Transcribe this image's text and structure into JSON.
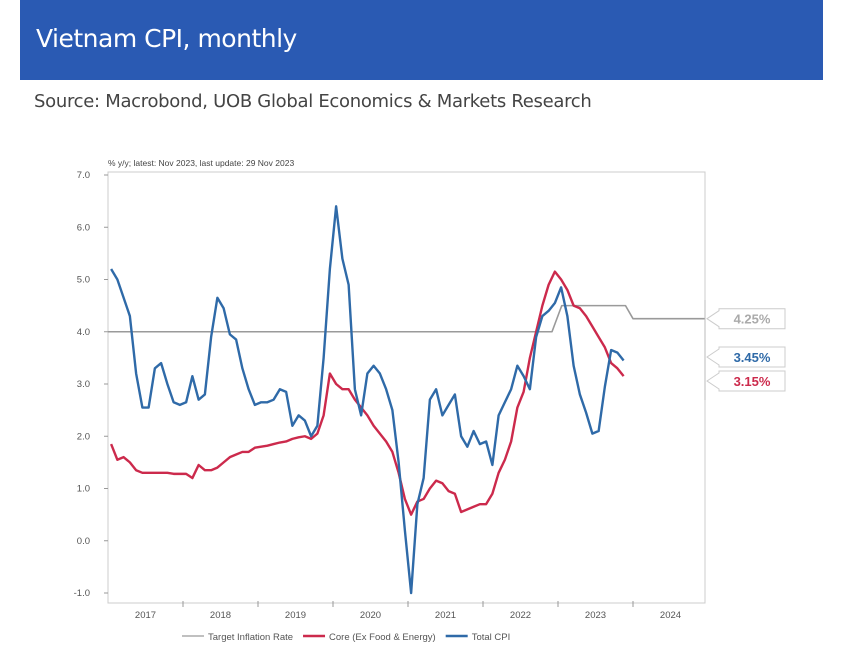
{
  "header": {
    "title": "Vietnam CPI, monthly",
    "source": "Source: Macrobond, UOB Global Economics & Markets Research"
  },
  "chart_data": {
    "type": "line",
    "title": "Vietnam CPI, monthly",
    "subtitle": "% y/y; latest: Nov 2023, last update: 29 Nov 2023",
    "xlabel": "",
    "ylabel": "",
    "start": "2017-01",
    "frequency": "monthly",
    "xlim": [
      2017,
      2024.96
    ],
    "ylim": [
      -1,
      7
    ],
    "yticks": [
      "7.0",
      "6.0",
      "5.0",
      "4.0",
      "3.0",
      "2.0",
      "1.0",
      "0.0",
      "-1.0"
    ],
    "xticks": [
      "2017",
      "2018",
      "2019",
      "2020",
      "2021",
      "2022",
      "2023",
      "2024"
    ],
    "legend_position": "bottom",
    "grid": false,
    "series": [
      {
        "name": "Target Inflation Rate",
        "color": "#9a9a9a",
        "steps": [
          [
            2017,
            4.0
          ],
          [
            2022.92,
            4.0
          ],
          [
            2023.05,
            4.5
          ],
          [
            2023.9,
            4.5
          ],
          [
            2024.0,
            4.25
          ],
          [
            2024.96,
            4.25
          ]
        ],
        "end_label": "4.25%"
      },
      {
        "name": "Core (Ex Food & Energy)",
        "color": "#cc2a4c",
        "values": [
          1.85,
          1.55,
          1.6,
          1.5,
          1.35,
          1.3,
          1.3,
          1.3,
          1.3,
          1.3,
          1.28,
          1.28,
          1.28,
          1.2,
          1.45,
          1.35,
          1.35,
          1.4,
          1.5,
          1.6,
          1.65,
          1.7,
          1.7,
          1.78,
          1.8,
          1.82,
          1.85,
          1.88,
          1.9,
          1.95,
          1.98,
          2.0,
          1.95,
          2.05,
          2.4,
          3.2,
          3.0,
          2.9,
          2.9,
          2.7,
          2.55,
          2.4,
          2.2,
          2.05,
          1.9,
          1.7,
          1.3,
          0.8,
          0.5,
          0.75,
          0.8,
          1.0,
          1.15,
          1.1,
          0.95,
          0.9,
          0.55,
          0.6,
          0.65,
          0.7,
          0.7,
          0.9,
          1.3,
          1.55,
          1.9,
          2.55,
          2.85,
          3.5,
          4.0,
          4.5,
          4.9,
          5.15,
          5.0,
          4.8,
          4.5,
          4.45,
          4.3,
          4.1,
          3.9,
          3.7,
          3.4,
          3.3,
          3.15
        ],
        "end_label": "3.15%"
      },
      {
        "name": "Total CPI",
        "color": "#2f6aa8",
        "values": [
          5.2,
          5.0,
          4.65,
          4.3,
          3.2,
          2.55,
          2.55,
          3.3,
          3.4,
          3.0,
          2.65,
          2.6,
          2.65,
          3.15,
          2.7,
          2.8,
          3.9,
          4.65,
          4.45,
          3.95,
          3.85,
          3.3,
          2.9,
          2.6,
          2.65,
          2.65,
          2.7,
          2.9,
          2.85,
          2.2,
          2.4,
          2.3,
          2.0,
          2.2,
          3.5,
          5.2,
          6.4,
          5.4,
          4.9,
          2.9,
          2.4,
          3.2,
          3.35,
          3.2,
          2.9,
          2.5,
          1.5,
          0.2,
          -1.0,
          0.7,
          1.2,
          2.7,
          2.9,
          2.4,
          2.6,
          2.8,
          2.0,
          1.8,
          2.1,
          1.85,
          1.9,
          1.45,
          2.4,
          2.65,
          2.9,
          3.35,
          3.15,
          2.9,
          3.9,
          4.3,
          4.4,
          4.55,
          4.85,
          4.3,
          3.35,
          2.8,
          2.45,
          2.05,
          2.1,
          2.95,
          3.65,
          3.6,
          3.45
        ],
        "end_label": "3.45%"
      }
    ]
  }
}
